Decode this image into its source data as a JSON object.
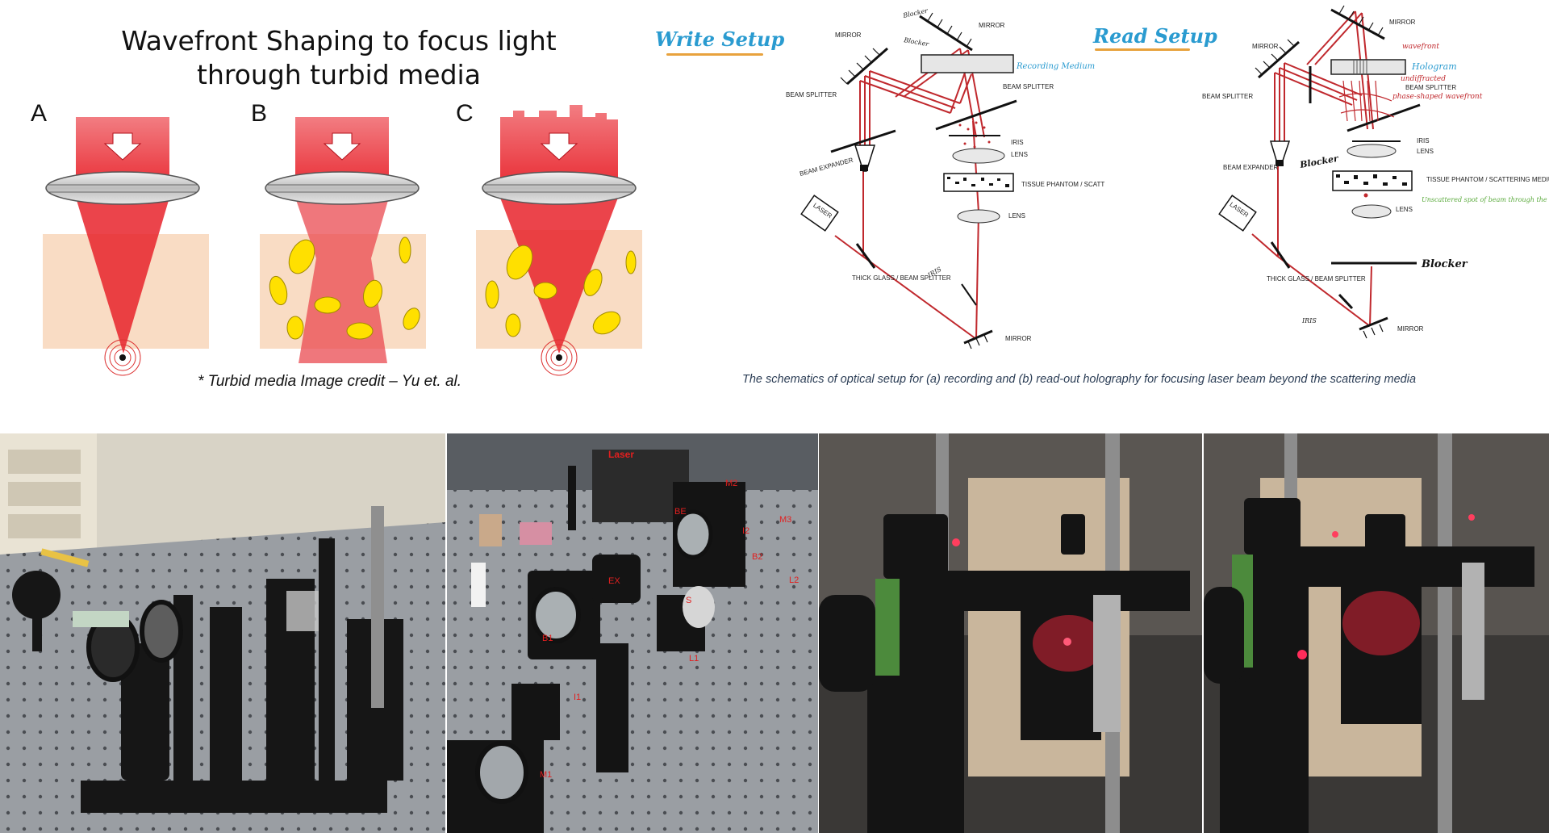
{
  "title": "Wavefront Shaping to focus light through turbid media",
  "panels": {
    "a": "A",
    "b": "B",
    "c": "C"
  },
  "credit": "* Turbid media Image credit – Yu et. al.",
  "write_setup": {
    "heading": "Write Setup",
    "labels": {
      "mirror_top": "MIRROR",
      "mirror_left": "MIRROR",
      "blocker_top": "Blocker",
      "blocker_top2": "Blocker",
      "recording_medium": "Recording Medium",
      "beam_splitter_right": "BEAM SPLITTER",
      "beam_splitter_left": "BEAM SPLITTER",
      "iris": "IRIS",
      "lens1": "LENS",
      "tissue": "TISSUE PHANTOM / SCATT",
      "beam_expander": "BEAM EXPANDER",
      "lens2": "LENS",
      "laser": "LASER",
      "thick_glass": "THICK GLASS / BEAM SPLITTER",
      "iris2": "IRIS",
      "mirror_bottom": "MIRROR"
    }
  },
  "read_setup": {
    "heading": "Read Setup",
    "labels": {
      "mirror_top": "MIRROR",
      "mirror_left": "MIRROR",
      "wavefront": "wavefront",
      "hologram": "Hologram",
      "undiffracted": "undiffracted",
      "beam_splitter_right": "BEAM SPLITTER",
      "shaped_wavefront": "phase-shaped wavefront",
      "beam_splitter_left": "BEAM SPLITTER",
      "iris": "IRIS",
      "blocker_left": "Blocker",
      "lens1": "LENS",
      "beam_expander": "BEAM EXPANDER",
      "tissue": "TISSUE PHANTOM / SCATTERING MEDIUM",
      "spot_note": "Unscattered spot of beam through the tissue",
      "lens2": "LENS",
      "laser": "LASER",
      "blocker_right": "Blocker",
      "thick_glass": "THICK GLASS / BEAM SPLITTER",
      "iris2": "IRIS",
      "mirror_bottom": "MIRROR"
    }
  },
  "caption": "The schematics of optical setup for (a) recording and (b) read-out holography for focusing laser beam beyond the scattering media",
  "photo2_labels": {
    "laser": "Laser",
    "m2": "M2",
    "be": "BE",
    "m3": "M3",
    "i2": "I2",
    "b2": "B2",
    "l2": "L2",
    "s": "S",
    "b1": "B1",
    "l1": "L1",
    "i1": "I1",
    "m1": "M1",
    "ex": "EX"
  },
  "colors": {
    "beam_red": "#c0282d",
    "blush": "#f9dcc4",
    "cell_yellow": "#ffe000",
    "handwriting_blue": "#2a9bd0",
    "underline_orange": "#e8a23d",
    "note_green": "#5aaa3c"
  }
}
